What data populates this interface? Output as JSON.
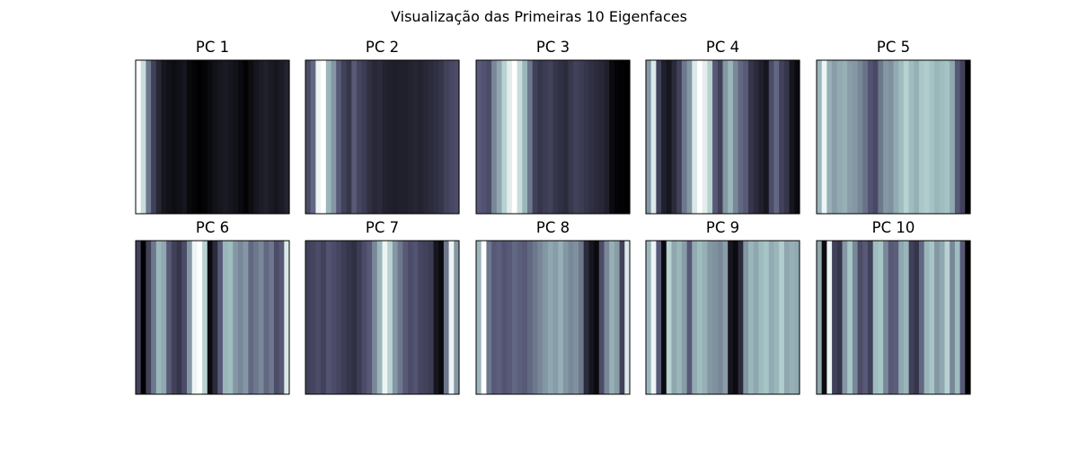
{
  "figure": {
    "title": "Visualização das Primeiras 10 Eigenfaces"
  },
  "chart_data": {
    "type": "heatmap",
    "title": "Visualização das Primeiras 10 Eigenfaces",
    "colormap": "bone",
    "grid": false,
    "show_ticks": false,
    "value_range": [
      0,
      1
    ],
    "layout": {
      "rows": 2,
      "cols": 5
    },
    "panels": [
      {
        "title": "PC 1",
        "stripes": [
          1.0,
          0.85,
          0.5,
          0.3,
          0.18,
          0.1,
          0.08,
          0.06,
          0.08,
          0.1,
          0.04,
          0.02,
          0.0,
          0.02,
          0.05,
          0.08,
          0.1,
          0.12,
          0.1,
          0.08,
          0.05,
          0.02,
          0.06,
          0.1,
          0.13,
          0.15,
          0.12,
          0.1,
          0.13,
          0.16
        ]
      },
      {
        "title": "PC 2",
        "stripes": [
          0.35,
          0.45,
          0.95,
          1.0,
          0.7,
          0.6,
          0.4,
          0.3,
          0.25,
          0.4,
          0.32,
          0.28,
          0.22,
          0.18,
          0.2,
          0.16,
          0.15,
          0.14,
          0.15,
          0.15,
          0.16,
          0.17,
          0.16,
          0.18,
          0.2,
          0.22,
          0.25,
          0.3,
          0.33,
          0.35
        ]
      },
      {
        "title": "PC 3",
        "stripes": [
          0.4,
          0.38,
          0.35,
          0.55,
          0.65,
          0.8,
          0.92,
          1.0,
          0.85,
          0.7,
          0.5,
          0.3,
          0.25,
          0.28,
          0.3,
          0.25,
          0.22,
          0.2,
          0.26,
          0.3,
          0.28,
          0.25,
          0.22,
          0.2,
          0.18,
          0.15,
          0.05,
          0.02,
          0.01,
          0.0
        ]
      },
      {
        "title": "PC 4",
        "stripes": [
          0.6,
          0.9,
          0.3,
          0.15,
          0.1,
          0.2,
          0.3,
          0.5,
          0.6,
          0.9,
          1.0,
          0.92,
          0.8,
          0.4,
          0.3,
          0.6,
          0.7,
          0.55,
          0.45,
          0.4,
          0.25,
          0.2,
          0.15,
          0.1,
          0.35,
          0.45,
          0.3,
          0.25,
          0.1,
          0.05
        ]
      },
      {
        "title": "PC 5",
        "stripes": [
          0.7,
          0.95,
          0.68,
          0.62,
          0.66,
          0.68,
          0.62,
          0.6,
          0.55,
          0.48,
          0.38,
          0.34,
          0.5,
          0.6,
          0.58,
          0.66,
          0.72,
          0.8,
          0.72,
          0.68,
          0.76,
          0.78,
          0.74,
          0.7,
          0.72,
          0.74,
          0.65,
          0.4,
          0.3,
          0.0
        ]
      },
      {
        "title": "PC 6",
        "stripes": [
          0.3,
          0.0,
          0.3,
          0.5,
          0.7,
          0.65,
          0.4,
          0.3,
          0.25,
          0.35,
          0.6,
          0.95,
          1.0,
          0.8,
          0.05,
          0.2,
          0.4,
          0.7,
          0.72,
          0.6,
          0.55,
          0.6,
          0.45,
          0.5,
          0.55,
          0.45,
          0.5,
          0.35,
          0.4,
          0.9
        ]
      },
      {
        "title": "PC 7",
        "stripes": [
          0.3,
          0.32,
          0.35,
          0.3,
          0.38,
          0.35,
          0.32,
          0.28,
          0.25,
          0.22,
          0.28,
          0.35,
          0.4,
          0.55,
          0.7,
          0.95,
          0.8,
          0.6,
          0.5,
          0.4,
          0.35,
          0.38,
          0.32,
          0.3,
          0.28,
          0.1,
          0.05,
          0.5,
          0.95,
          0.6
        ]
      },
      {
        "title": "PC 8",
        "stripes": [
          0.7,
          1.0,
          0.5,
          0.4,
          0.42,
          0.38,
          0.4,
          0.45,
          0.42,
          0.4,
          0.45,
          0.5,
          0.55,
          0.6,
          0.65,
          0.62,
          0.68,
          0.6,
          0.55,
          0.58,
          0.5,
          0.2,
          0.1,
          0.05,
          0.35,
          0.55,
          0.68,
          0.62,
          0.3,
          0.9
        ]
      },
      {
        "title": "PC 9",
        "stripes": [
          0.7,
          0.95,
          0.4,
          0.05,
          0.8,
          0.65,
          0.7,
          0.62,
          0.4,
          0.66,
          0.72,
          0.68,
          0.6,
          0.58,
          0.55,
          0.62,
          0.1,
          0.05,
          0.2,
          0.6,
          0.7,
          0.65,
          0.72,
          0.75,
          0.66,
          0.7,
          0.78,
          0.65,
          0.68,
          0.66
        ]
      },
      {
        "title": "PC 10",
        "stripes": [
          0.65,
          0.05,
          0.95,
          0.3,
          0.25,
          0.6,
          0.75,
          0.55,
          0.35,
          0.4,
          0.3,
          0.72,
          0.75,
          0.55,
          0.4,
          0.42,
          0.65,
          0.7,
          0.3,
          0.25,
          0.45,
          0.7,
          0.75,
          0.6,
          0.65,
          0.8,
          0.55,
          0.72,
          0.4,
          0.0
        ]
      }
    ]
  }
}
